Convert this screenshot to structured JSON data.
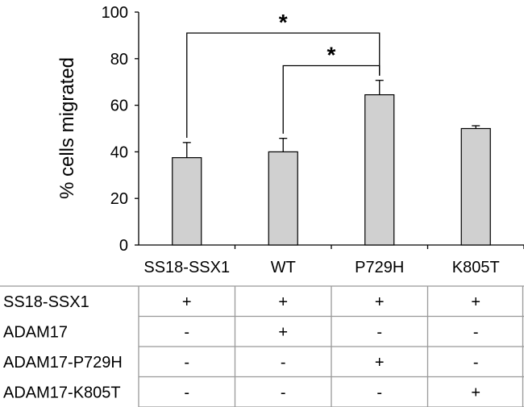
{
  "chart_data": {
    "type": "bar",
    "title": "",
    "xlabel": "",
    "ylabel": "% cells migrated",
    "ylim": [
      0,
      100
    ],
    "yticks": [
      "0",
      "20",
      "40",
      "60",
      "80",
      "100"
    ],
    "categories": [
      "SS18-SSX1",
      "WT",
      "P729H",
      "K805T"
    ],
    "values": [
      37.5,
      40,
      64.5,
      50
    ],
    "errors": [
      6.5,
      5.8,
      6.2,
      1.2
    ],
    "significance": [
      {
        "from": 0,
        "to": 2,
        "label": "*",
        "level": 91
      },
      {
        "from": 1,
        "to": 2,
        "label": "*",
        "level": 77
      }
    ],
    "legend": "none",
    "grid": false
  },
  "condition_table": {
    "rows": [
      {
        "label": "SS18-SSX1",
        "cells": [
          "+",
          "+",
          "+",
          "+"
        ]
      },
      {
        "label": "ADAM17",
        "cells": [
          "-",
          "+",
          "-",
          "-"
        ]
      },
      {
        "label": "ADAM17-P729H",
        "cells": [
          "-",
          "-",
          "+",
          "-"
        ]
      },
      {
        "label": "ADAM17-K805T",
        "cells": [
          "-",
          "-",
          "-",
          "+"
        ]
      }
    ]
  }
}
